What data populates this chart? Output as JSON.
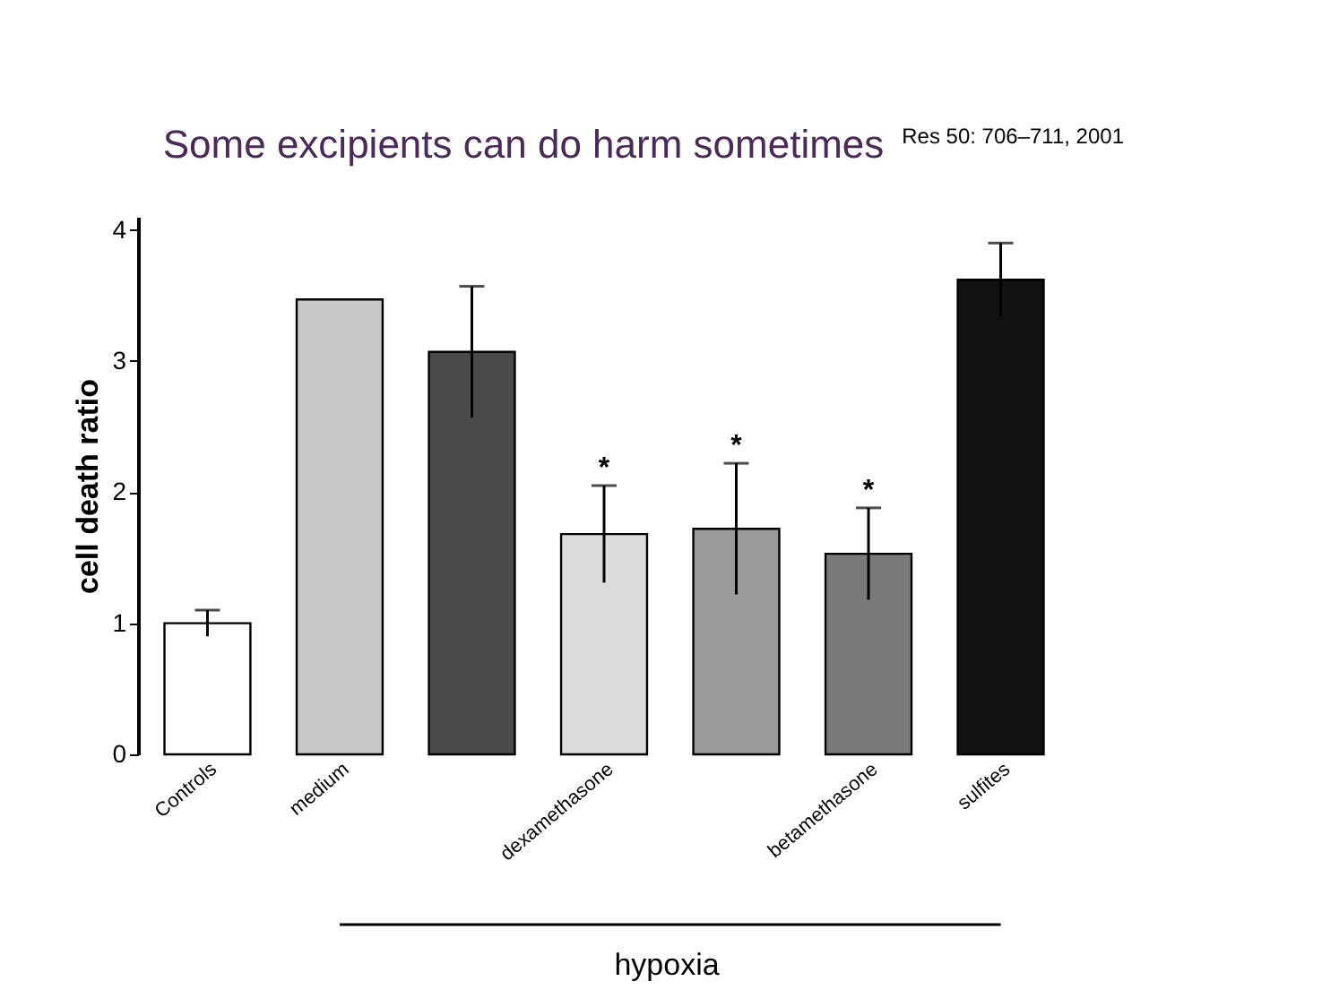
{
  "chart_data": {
    "type": "bar",
    "ylabel": "cell death ratio",
    "categories": [
      "Controls",
      "medium",
      null,
      "dexamethasone",
      null,
      "betamethasone",
      "sulfites"
    ],
    "values": [
      1.0,
      3.47,
      3.07,
      1.68,
      1.72,
      1.53,
      3.62
    ],
    "errors": [
      0.1,
      null,
      0.5,
      0.37,
      0.5,
      0.35,
      0.28
    ],
    "colors": [
      "#ffffff",
      "#c8c8c8",
      "#4a4a4a",
      "#dcdcdc",
      "#9a9a9a",
      "#7a7a7a",
      "#111111"
    ],
    "value_labels": [
      null,
      null,
      null,
      "*",
      "*",
      "*",
      null
    ],
    "ylim": [
      0,
      4.1
    ],
    "yticks": [
      0,
      1,
      2,
      3,
      4
    ],
    "grid": false,
    "annotations": [
      "Some excipients can do harm sometimes",
      "Res 50: 706–711, 2001",
      "hypoxia"
    ]
  }
}
